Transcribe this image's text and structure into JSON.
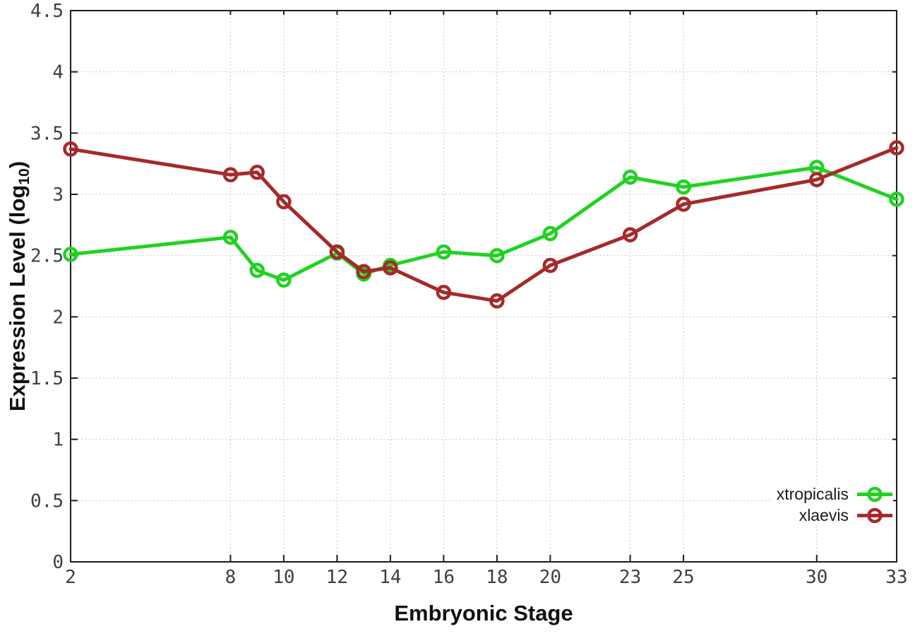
{
  "chart_data": {
    "type": "line",
    "title": "",
    "xlabel": "Embryonic Stage",
    "ylabel": {
      "main": "Expression Level (log",
      "sub": "10",
      "end": ")"
    },
    "x": [
      2,
      8,
      9,
      10,
      12,
      13,
      14,
      16,
      18,
      20,
      23,
      25,
      30,
      33
    ],
    "series": [
      {
        "name": "xtropicalis",
        "color": "#1fd31f",
        "marker": "open-circle",
        "values": [
          2.51,
          2.65,
          2.38,
          2.3,
          2.52,
          2.35,
          2.42,
          2.53,
          2.5,
          2.68,
          3.14,
          3.06,
          3.22,
          2.96
        ]
      },
      {
        "name": "xlaevis",
        "color": "#a52a2a",
        "marker": "open-circle",
        "values": [
          3.37,
          3.16,
          3.18,
          2.94,
          2.53,
          2.37,
          2.4,
          2.2,
          2.13,
          2.42,
          2.67,
          2.92,
          3.12,
          3.38
        ]
      }
    ],
    "xlim": [
      2,
      33
    ],
    "ylim": [
      0,
      4.5
    ],
    "xticks": {
      "values": [
        2,
        8,
        10,
        12,
        14,
        16,
        18,
        20,
        23,
        25,
        30,
        33
      ],
      "labels": [
        "2",
        "8",
        "10",
        "12",
        "14",
        "16",
        "18",
        "20",
        "23",
        "25",
        "30",
        "33"
      ]
    },
    "yticks": {
      "values": [
        0,
        0.5,
        1,
        1.5,
        2,
        2.5,
        3,
        3.5,
        4,
        4.5
      ],
      "labels": [
        "0",
        "0.5",
        "1",
        "1.5",
        "2",
        "2.5",
        "3",
        "3.5",
        "4",
        "4.5"
      ]
    },
    "grid": true,
    "legend_position": "bottom-right"
  },
  "styles": {
    "background": "#ffffff",
    "grid_color": "#b5b5b5",
    "border_color": "#1d1d1d",
    "tick_label_color": "#3f3f3f",
    "axis_title_color": "#101010",
    "legend_text_color": "#1a1a1a"
  }
}
